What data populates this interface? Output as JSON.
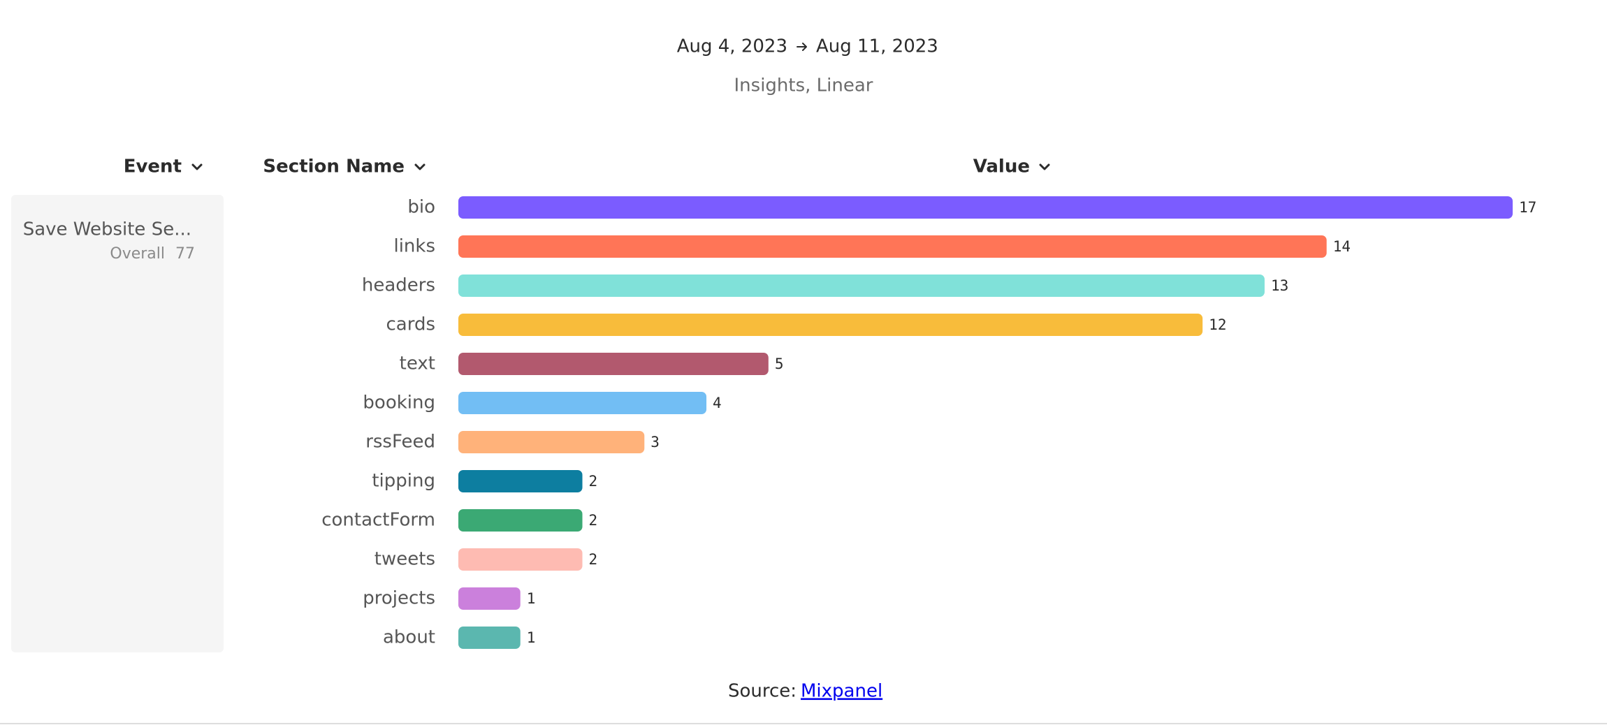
{
  "header": {
    "date_start": "Aug 4, 2023",
    "date_end": "Aug 11, 2023",
    "subtitle": "Insights, Linear"
  },
  "columns": [
    "Event",
    "Section Name",
    "Value"
  ],
  "event": {
    "name": "Save Website Se...",
    "overall_label": "Overall",
    "overall_value": 77
  },
  "chart_data": {
    "type": "bar",
    "categories": [
      "bio",
      "links",
      "headers",
      "cards",
      "text",
      "booking",
      "rssFeed",
      "tipping",
      "contactForm",
      "tweets",
      "projects",
      "about"
    ],
    "values": [
      17,
      14,
      13,
      12,
      5,
      4,
      3,
      2,
      2,
      2,
      1,
      1
    ],
    "colors": [
      "#7b5cff",
      "#ff7557",
      "#80e1d9",
      "#f8bc3b",
      "#b2596e",
      "#72bef4",
      "#ffb27a",
      "#0d7ea0",
      "#3ba974",
      "#febbb2",
      "#cb80dc",
      "#5bb7af"
    ]
  },
  "source": {
    "label": "Source:",
    "link": "Mixpanel"
  }
}
